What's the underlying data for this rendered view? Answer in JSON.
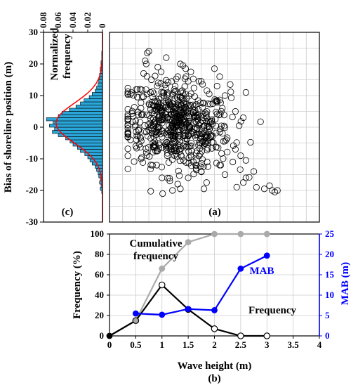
{
  "chart_data": [
    {
      "id": "c",
      "type": "bar",
      "panel_label": "(c)",
      "orientation": "horizontal",
      "ylabel": "Bias of shoreline position (m)",
      "annotation": [
        "Normalized",
        "frequency"
      ],
      "ylim": [
        -30,
        30
      ],
      "xlim": [
        0.08,
        0
      ],
      "xticks": [
        "0.08",
        "0.06",
        "0.04",
        "0.02",
        "0"
      ],
      "yticks": [
        "-30",
        "-20",
        "-10",
        "0",
        "10",
        "20",
        "30"
      ],
      "bar_color": "#2ba6d9",
      "curve_color": "#ff0000",
      "bins": [
        -21,
        -20,
        -19,
        -18,
        -17,
        -16,
        -15,
        -14,
        -13,
        -12,
        -11,
        -10,
        -9,
        -8,
        -7,
        -6,
        -5,
        -4,
        -3,
        -2,
        -1,
        0,
        1,
        2,
        3,
        4,
        5,
        6,
        7,
        8,
        9,
        10,
        11,
        12,
        13,
        14,
        15,
        16,
        17,
        18,
        19,
        20,
        21,
        22,
        23
      ],
      "values": [
        0.001,
        0.003,
        0.002,
        0.004,
        0.003,
        0.005,
        0.006,
        0.008,
        0.01,
        0.014,
        0.017,
        0.02,
        0.024,
        0.03,
        0.034,
        0.04,
        0.044,
        0.05,
        0.06,
        0.068,
        0.065,
        0.072,
        0.067,
        0.076,
        0.06,
        0.055,
        0.045,
        0.036,
        0.03,
        0.025,
        0.018,
        0.014,
        0.01,
        0.008,
        0.006,
        0.005,
        0.004,
        0.004,
        0.003,
        0.003,
        0.002,
        0.002,
        0.001,
        0.001,
        0.001
      ],
      "curve_mean": 1.3,
      "curve_sd": 6.3,
      "curve_peak": 0.063
    },
    {
      "id": "a",
      "type": "scatter",
      "panel_label": "(a)",
      "xlim": [
        0,
        4
      ],
      "ylim": [
        -30,
        30
      ],
      "grid": true,
      "points": [
        [
          0.68,
          21.0
        ],
        [
          0.72,
          23.5
        ],
        [
          0.75,
          24.0
        ],
        [
          0.7,
          20.0
        ],
        [
          0.65,
          17.0
        ],
        [
          0.58,
          12.0
        ],
        [
          0.8,
          15.0
        ],
        [
          0.92,
          19.0
        ],
        [
          0.88,
          8.0
        ],
        [
          0.78,
          11.0
        ],
        [
          1.35,
          20.0
        ],
        [
          1.4,
          19.5
        ],
        [
          1.45,
          18.5
        ],
        [
          1.55,
          17.5
        ],
        [
          1.3,
          16.0
        ],
        [
          1.25,
          13.0
        ],
        [
          1.5,
          14.5
        ],
        [
          1.38,
          9.0
        ],
        [
          2.0,
          18.5
        ],
        [
          2.1,
          16.0
        ],
        [
          2.05,
          13.0
        ],
        [
          2.3,
          13.5
        ],
        [
          2.6,
          11.0
        ],
        [
          1.9,
          10.5
        ],
        [
          2.2,
          10.0
        ],
        [
          2.4,
          5.0
        ],
        [
          2.55,
          3.0
        ],
        [
          2.15,
          6.0
        ],
        [
          0.6,
          6.0
        ],
        [
          0.5,
          2.0
        ],
        [
          0.4,
          -4.0
        ],
        [
          0.35,
          -3.0
        ],
        [
          0.45,
          3.5
        ],
        [
          0.55,
          -1.0
        ],
        [
          0.5,
          -6.0
        ],
        [
          0.6,
          -10.0
        ],
        [
          0.7,
          -8.0
        ],
        [
          1.0,
          -16.0
        ],
        [
          1.15,
          -17.0
        ],
        [
          1.2,
          -20.0
        ],
        [
          1.35,
          -19.5
        ],
        [
          1.3,
          -18.0
        ],
        [
          1.8,
          -19.5
        ],
        [
          1.85,
          -17.5
        ],
        [
          1.5,
          -16.0
        ],
        [
          1.65,
          -13.0
        ],
        [
          1.75,
          -14.0
        ],
        [
          2.1,
          -12.0
        ],
        [
          2.35,
          -11.0
        ],
        [
          2.5,
          -9.0
        ],
        [
          2.6,
          -10.5
        ],
        [
          2.4,
          -7.0
        ],
        [
          2.2,
          -15.0
        ],
        [
          2.75,
          -14.0
        ],
        [
          2.6,
          -16.0
        ],
        [
          2.55,
          -17.5
        ],
        [
          2.8,
          -19.0
        ],
        [
          2.95,
          -19.5
        ],
        [
          3.05,
          -18.5
        ],
        [
          3.1,
          -20.0
        ],
        [
          3.15,
          -20.5
        ],
        [
          3.2,
          -20.0
        ],
        [
          1.6,
          -11.0
        ],
        [
          0.9,
          -12.0
        ],
        [
          1.1,
          -9.0
        ],
        [
          1.0,
          5.0
        ],
        [
          1.1,
          3.0
        ],
        [
          1.2,
          1.0
        ],
        [
          0.95,
          0.0
        ],
        [
          0.85,
          -2.0
        ]
      ],
      "cluster": {
        "x_mean": 1.3,
        "x_sd": 0.5,
        "y_mean": 0.5,
        "y_sd": 6.5,
        "n": 620,
        "x_min": 0.35,
        "x_max": 3.0,
        "y_min": -21,
        "y_max": 22
      }
    },
    {
      "id": "b",
      "type": "line",
      "panel_label": "(b)",
      "xlabel": "Wave height (m)",
      "ylabel": "Frequency (%)",
      "y2label": "MAB (m)",
      "xlim": [
        0,
        4
      ],
      "ylim": [
        0,
        100
      ],
      "y2lim": [
        0,
        25
      ],
      "xticks": [
        "0",
        "0.5",
        "1",
        "1.5",
        "2",
        "2.5",
        "3",
        "3.5",
        "4"
      ],
      "yticks": [
        "0",
        "20",
        "40",
        "60",
        "80",
        "100"
      ],
      "y2ticks": [
        "0",
        "5",
        "10",
        "15",
        "20",
        "25"
      ],
      "x": [
        0,
        0.5,
        1,
        1.5,
        2,
        2.5,
        3
      ],
      "series": [
        {
          "name": "Cumulative frequency",
          "axis": "left",
          "color": "#aaaaaa",
          "values": [
            0,
            15,
            66,
            92,
            100,
            100,
            100
          ],
          "label": [
            "Cumulative",
            "frequency"
          ]
        },
        {
          "name": "Frequency",
          "axis": "left",
          "color": "#000000",
          "values": [
            0,
            15,
            50,
            26,
            7,
            0,
            0
          ],
          "label": [
            "Frequency"
          ]
        },
        {
          "name": "MAB",
          "axis": "right",
          "color": "#0000ff",
          "x": [
            0.5,
            1,
            1.5,
            2,
            2.5,
            3
          ],
          "values": [
            5.5,
            5.2,
            6.6,
            6.3,
            16.5,
            19.7
          ],
          "label": [
            "MAB"
          ]
        }
      ]
    }
  ]
}
